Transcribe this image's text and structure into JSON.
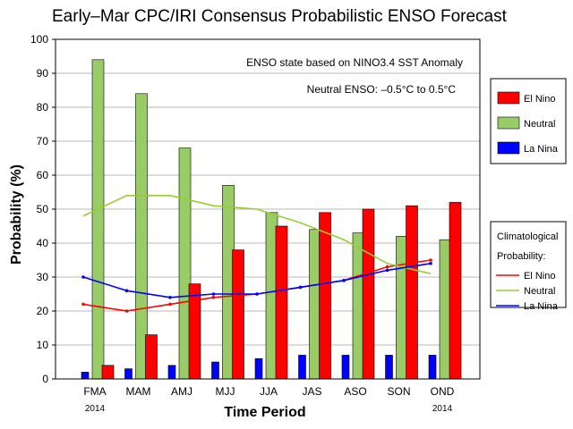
{
  "chart_data": {
    "type": "bar",
    "title": "Early–Mar CPC/IRI Consensus Probabilistic ENSO Forecast",
    "xlabel": "Time Period",
    "ylabel": "Probability (%)",
    "ylim": [
      0,
      100
    ],
    "yticks": [
      0,
      10,
      20,
      30,
      40,
      50,
      60,
      70,
      80,
      90,
      100
    ],
    "grid": true,
    "categories": [
      "FMA",
      "MAM",
      "AMJ",
      "MJJ",
      "JJA",
      "JAS",
      "ASO",
      "SON",
      "OND"
    ],
    "category_sublabels": [
      "2014",
      "",
      "",
      "",
      "",
      "",
      "",
      "",
      "2014"
    ],
    "annotations": [
      "ENSO state based on NINO3.4 SST Anomaly",
      "Neutral ENSO: –0.5°C to 0.5°C"
    ],
    "series": [
      {
        "name": "La Nina",
        "color": "#0000ff",
        "values": [
          2,
          3,
          4,
          5,
          6,
          7,
          7,
          7,
          7
        ]
      },
      {
        "name": "Neutral",
        "color": "#99cc66",
        "values": [
          94,
          84,
          68,
          57,
          49,
          44,
          43,
          42,
          41
        ]
      },
      {
        "name": "El Nino",
        "color": "#ff0000",
        "values": [
          4,
          13,
          28,
          38,
          45,
          49,
          50,
          51,
          52
        ]
      }
    ],
    "legend": {
      "placement": "right",
      "entries": [
        "El Nino",
        "Neutral",
        "La Nina"
      ]
    },
    "climatology": {
      "title_line1": "Climatological",
      "title_line2": "Probability:",
      "placement": "right",
      "series": [
        {
          "name": "El Nino",
          "color": "#ff0000",
          "values": [
            22,
            20,
            22,
            24,
            25,
            27,
            29,
            33,
            35
          ]
        },
        {
          "name": "Neutral",
          "color": "#99cc33",
          "values": [
            48,
            54,
            54,
            51,
            50,
            46,
            41,
            34,
            31
          ]
        },
        {
          "name": "La Nina",
          "color": "#0000ff",
          "values": [
            30,
            26,
            24,
            25,
            25,
            27,
            29,
            32,
            34
          ]
        }
      ]
    }
  }
}
